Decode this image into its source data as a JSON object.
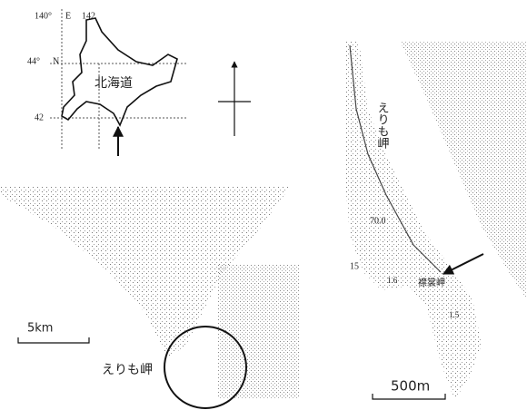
{
  "inset_map": {
    "lon_label_1": "140°",
    "lon_dir": "E",
    "lon_label_2": "142",
    "lat_label_1": "44°",
    "lat_dir": "N",
    "lat_label_2": "42",
    "region_label": "北海道"
  },
  "left_map": {
    "scale_label": "5km",
    "place_label": "えりも岬"
  },
  "right_map": {
    "place_label": "えりも岬",
    "elevation_1": "70.0",
    "elevation_2": "15",
    "depth_1": "1.6",
    "cape_label": "襟裳岬",
    "depth_2": "1.5",
    "scale_label": "500m"
  }
}
